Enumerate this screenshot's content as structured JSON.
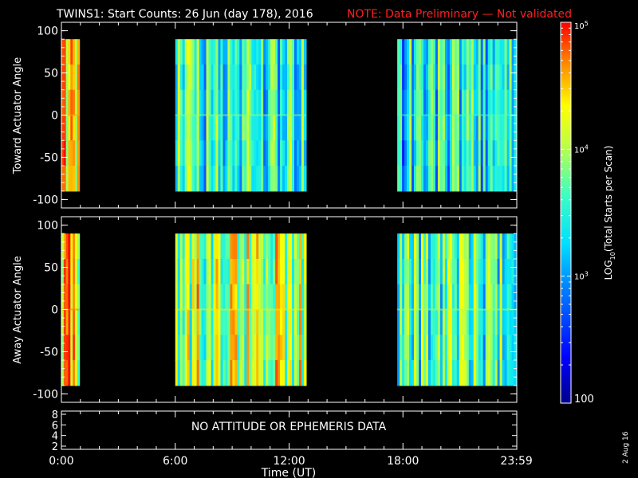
{
  "header": {
    "title": "TWINS1: Start Counts: 26 Jun (day 178), 2016",
    "note": "NOTE: Data Preliminary — Not validated",
    "note_color": "#ff2020"
  },
  "stamp": "2 Aug 16",
  "chart_data": [
    {
      "type": "heatmap",
      "panel": "toward",
      "ylabel": "Toward Actuator Angle",
      "ylim": [
        -110,
        110
      ],
      "y_ticks": [
        "100",
        "50",
        "0",
        "-50",
        "-100"
      ],
      "y_tick_values": [
        100,
        50,
        0,
        -50,
        -100
      ],
      "data_y_range": [
        -90,
        90
      ],
      "xlim": [
        0,
        24
      ],
      "blocks": [
        {
          "start_hour": 0.0,
          "end_hour": 0.95,
          "mean_log_counts": 4.2
        },
        {
          "start_hour": 6.0,
          "end_hour": 12.9,
          "mean_log_counts": 3.5
        },
        {
          "start_hour": 17.7,
          "end_hour": 23.98,
          "mean_log_counts": 3.3
        }
      ]
    },
    {
      "type": "heatmap",
      "panel": "away",
      "ylabel": "Away Actuator Angle",
      "ylim": [
        -110,
        110
      ],
      "y_ticks": [
        "100",
        "50",
        "0",
        "-50",
        "-100"
      ],
      "y_tick_values": [
        100,
        50,
        0,
        -50,
        -100
      ],
      "data_y_range": [
        -90,
        90
      ],
      "xlim": [
        0,
        24
      ],
      "blocks": [
        {
          "start_hour": 0.0,
          "end_hour": 0.95,
          "mean_log_counts": 4.3
        },
        {
          "start_hour": 6.0,
          "end_hour": 12.9,
          "mean_log_counts": 4.0
        },
        {
          "start_hour": 17.7,
          "end_hour": 23.98,
          "mean_log_counts": 3.6
        }
      ]
    }
  ],
  "ephemeris_panel": {
    "y_ticks": [
      "8",
      "6",
      "4",
      "2"
    ],
    "y_tick_values": [
      8,
      6,
      4,
      2
    ],
    "ylim": [
      1.4,
      8.6
    ],
    "message": "NO ATTITUDE OR EPHEMERIS DATA"
  },
  "x_axis": {
    "xlabel": "Time (UT)",
    "ticks": [
      "0:00",
      "6:00",
      "12:00",
      "18:00",
      "23:59"
    ],
    "tick_hours": [
      0,
      6,
      12,
      18,
      23.983
    ]
  },
  "colorbar": {
    "label": "LOG10(Total Starts per Scan)",
    "label_main": "LOG",
    "label_sub": "10",
    "label_rest": "(Total Starts per Scan)",
    "tick_labels": [
      "10^5",
      "10^4",
      "10^3",
      "100"
    ],
    "tick_base": "10",
    "tick_exps": [
      "5",
      "4",
      "3",
      ""
    ],
    "tick_values_log": [
      5,
      4,
      3,
      2
    ],
    "range_log": [
      2,
      5
    ]
  }
}
